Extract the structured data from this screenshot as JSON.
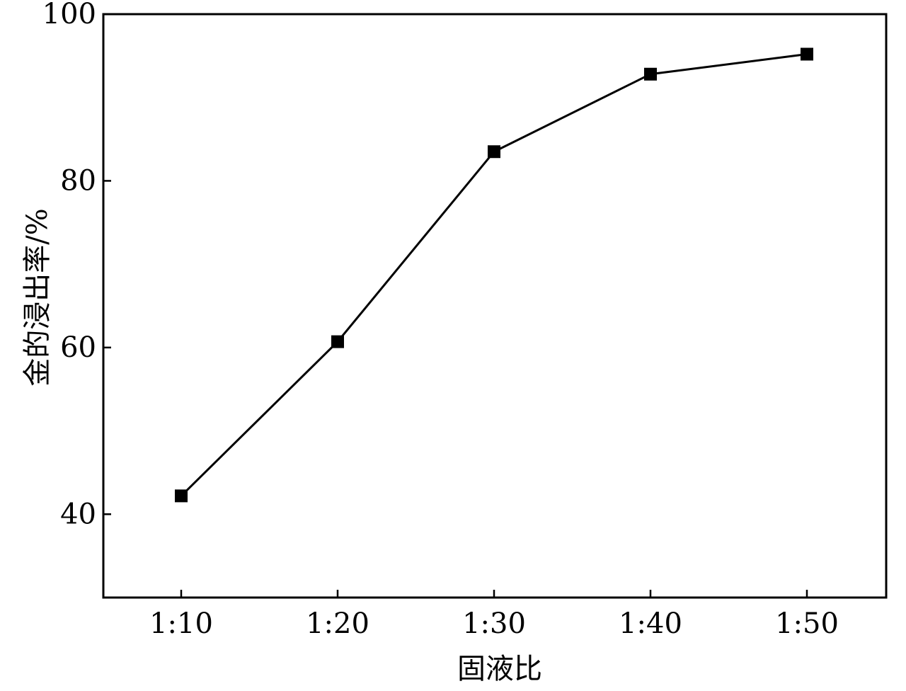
{
  "chart_data": {
    "type": "line",
    "title": "",
    "xlabel": "固液比",
    "ylabel": "金的浸出率/%",
    "categories": [
      "1:10",
      "1:20",
      "1:30",
      "1:40",
      "1:50"
    ],
    "series": [
      {
        "values": [
          42.2,
          60.7,
          83.5,
          92.8,
          95.2
        ],
        "marker": "square",
        "color": "#000000"
      }
    ],
    "ylim": [
      30,
      100
    ],
    "yticks": [
      40,
      60,
      80,
      100
    ],
    "grid": false,
    "legend": "none"
  }
}
